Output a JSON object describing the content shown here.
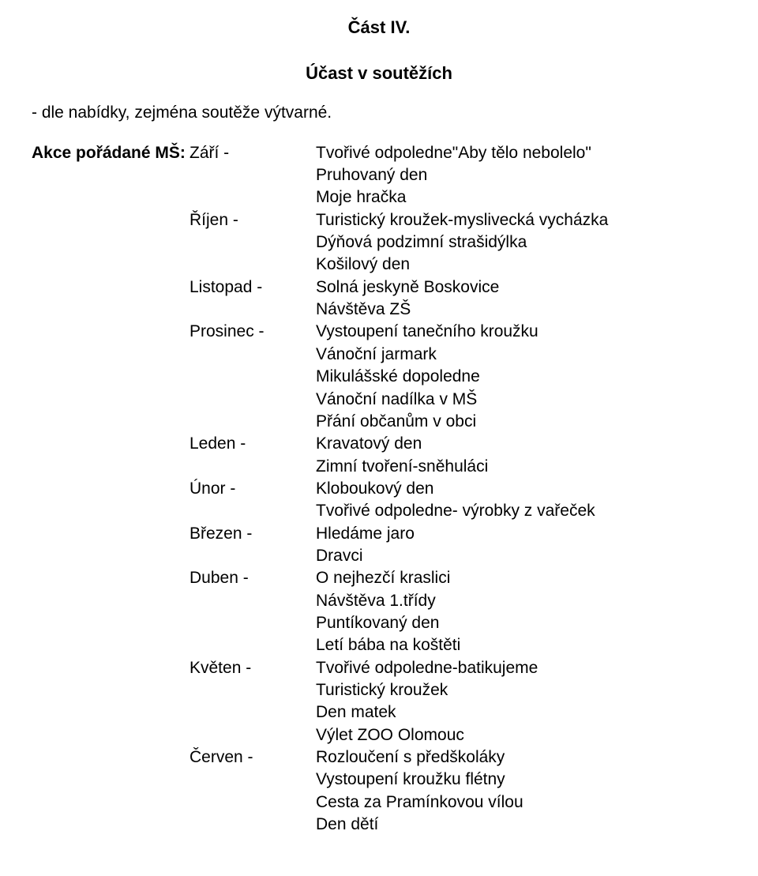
{
  "sectionTitle": "Část IV.",
  "subtitle": "Účast v soutěžích",
  "intro": "- dle nabídky, zejména soutěže výtvarné.",
  "listLabel": "Akce pořádané MŠ:",
  "months": [
    {
      "month": "Září -",
      "items": [
        "Tvořivé odpoledne\"Aby tělo nebolelo\"",
        "Pruhovaný den",
        "Moje hračka"
      ]
    },
    {
      "month": "Říjen -",
      "items": [
        "Turistický kroužek-myslivecká vycházka",
        "Dýňová podzimní strašidýlka",
        "Košilový den"
      ]
    },
    {
      "month": "Listopad -",
      "items": [
        "Solná jeskyně Boskovice",
        "Návštěva ZŠ"
      ]
    },
    {
      "month": "Prosinec -",
      "items": [
        "Vystoupení tanečního kroužku",
        "Vánoční jarmark",
        "Mikulášské dopoledne",
        "Vánoční nadílka v MŠ",
        "Přání občanům v obci"
      ]
    },
    {
      "month": "Leden -",
      "items": [
        "Kravatový den",
        "Zimní tvoření-sněhuláci"
      ]
    },
    {
      "month": "Únor -",
      "items": [
        "Kloboukový den",
        "Tvořivé odpoledne- výrobky z vařeček"
      ]
    },
    {
      "month": "Březen -",
      "items": [
        "Hledáme jaro",
        "Dravci"
      ]
    },
    {
      "month": "Duben -",
      "items": [
        "O nejhezčí kraslici",
        "Návštěva 1.třídy",
        "Puntíkovaný den",
        "Letí bába na koštěti"
      ]
    },
    {
      "month": "Květen -",
      "items": [
        "Tvořivé odpoledne-batikujeme",
        "Turistický kroužek",
        "Den matek",
        "Výlet ZOO Olomouc"
      ]
    },
    {
      "month": "Červen -",
      "items": [
        "Rozloučení s předškoláky",
        "Vystoupení kroužku flétny",
        "Cesta za Pramínkovou vílou",
        "Den dětí"
      ]
    }
  ],
  "style": {
    "background": "#ffffff",
    "text_color": "#000000",
    "font_size": 21,
    "title_font_size": 22,
    "font_family": "Arial, Helvetica, sans-serif"
  }
}
